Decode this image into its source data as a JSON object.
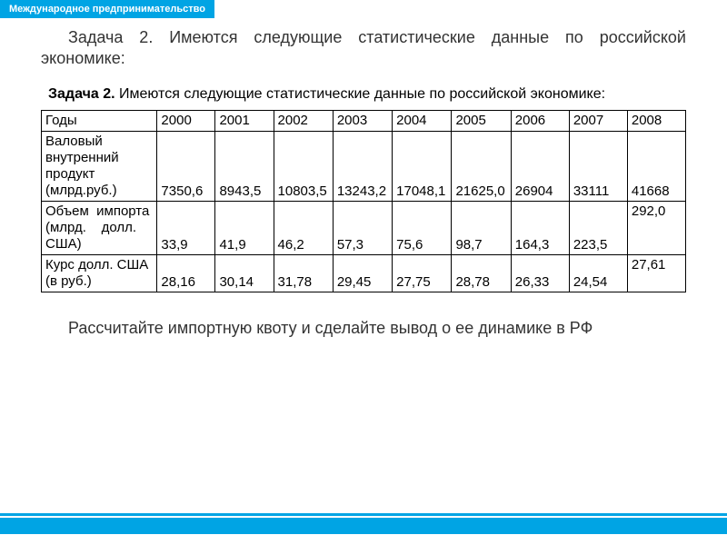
{
  "header": {
    "title": "Международное предпринимательство"
  },
  "intro": "Задача 2. Имеются следующие статистические данные по российской экономике:",
  "task_label_bold": "Задача 2.",
  "task_label_rest": " Имеются следующие статистические данные по российской экономике:",
  "table": {
    "type": "table",
    "background_color": "#ffffff",
    "border_color": "#000000",
    "font_size": 15,
    "row_labels": [
      "Годы",
      "Валовый внутренний продукт (млрд.руб.)",
      "Объем импорта (млрд. долл. США)",
      "Курс долл. США (в руб.)"
    ],
    "row_label_lines": [
      [
        "Годы"
      ],
      [
        "Валовый",
        "внутренний",
        "продукт",
        "(млрд.руб.)"
      ],
      [
        "Объем  импорта",
        "(млрд.    долл.",
        "США)"
      ],
      [
        "Курс долл. США",
        "(в руб.)"
      ]
    ],
    "columns": [
      "2000",
      "2001",
      "2002",
      "2003",
      "2004",
      "2005",
      "2006",
      "2007",
      "2008"
    ],
    "rows": [
      [
        "7350,6",
        "8943,5",
        "10803,5",
        "13243,2",
        "17048,1",
        "21625,0",
        "26904",
        "33111",
        "41668"
      ],
      [
        "33,9",
        "41,9",
        "46,2",
        "57,3",
        "75,6",
        "98,7",
        "164,3",
        "223,5",
        "292,0"
      ],
      [
        "28,16",
        "30,14",
        "31,78",
        "29,45",
        "27,75",
        "28,78",
        "26,33",
        "24,54",
        "27,61"
      ]
    ],
    "last_row_value_top": [
      false,
      true,
      true
    ]
  },
  "outro": "Рассчитайте импортную квоту и сделайте вывод о ее динамике в РФ",
  "colors": {
    "accent": "#00a4e4",
    "text": "#333333",
    "border": "#000000"
  }
}
